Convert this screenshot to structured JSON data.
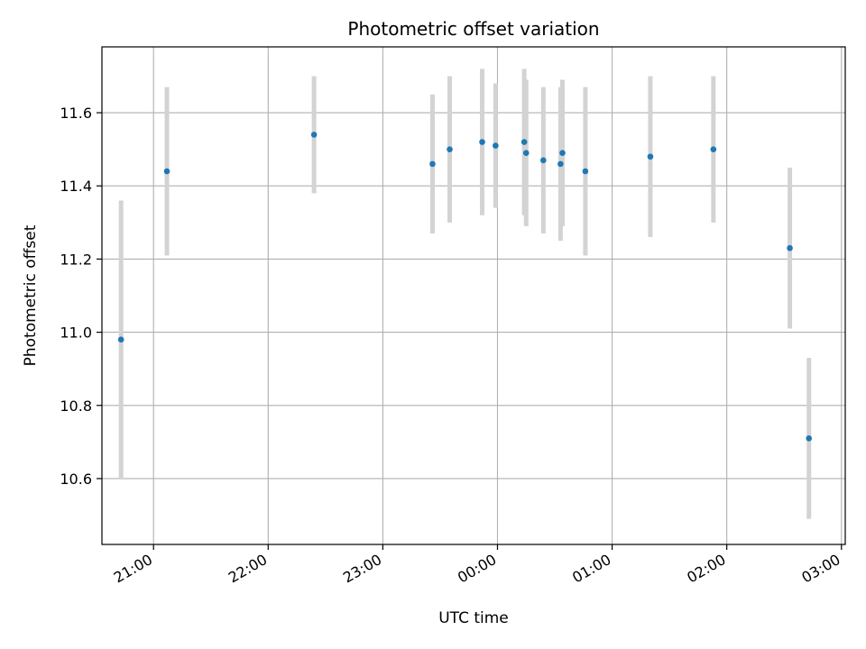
{
  "chart_data": {
    "type": "scatter",
    "title": "Photometric offset variation",
    "xlabel": "UTC time",
    "ylabel": "Photometric offset",
    "x_axis_kind": "time",
    "xlim": [
      "20:33",
      "03:02"
    ],
    "ylim": [
      10.42,
      11.78
    ],
    "xticks": [
      {
        "time": "21:00",
        "label": "21:00"
      },
      {
        "time": "22:00",
        "label": "22:00"
      },
      {
        "time": "23:00",
        "label": "23:00"
      },
      {
        "time": "00:00",
        "label": "00:00"
      },
      {
        "time": "01:00",
        "label": "01:00"
      },
      {
        "time": "02:00",
        "label": "02:00"
      },
      {
        "time": "03:00",
        "label": "03:00"
      }
    ],
    "yticks": [
      10.6,
      10.8,
      11.0,
      11.2,
      11.4,
      11.6
    ],
    "ytick_labels": [
      "10.6",
      "10.8",
      "11.0",
      "11.2",
      "11.4",
      "11.6"
    ],
    "grid": true,
    "colors": {
      "point": "#1f77b4",
      "errorbar": "#d3d3d3",
      "grid": "#b0b0b0",
      "axes": "#000000"
    },
    "series": [
      {
        "points": [
          {
            "time": "20:43",
            "y": 10.98,
            "err": 0.38
          },
          {
            "time": "21:07",
            "y": 11.44,
            "err": 0.23
          },
          {
            "time": "22:24",
            "y": 11.54,
            "err": 0.16
          },
          {
            "time": "23:26",
            "y": 11.46,
            "err": 0.19
          },
          {
            "time": "23:35",
            "y": 11.5,
            "err": 0.2
          },
          {
            "time": "23:52",
            "y": 11.52,
            "err": 0.2
          },
          {
            "time": "23:59",
            "y": 11.51,
            "err": 0.17
          },
          {
            "time": "00:14",
            "y": 11.52,
            "err": 0.2
          },
          {
            "time": "00:15",
            "y": 11.49,
            "err": 0.2
          },
          {
            "time": "00:24",
            "y": 11.47,
            "err": 0.2
          },
          {
            "time": "00:33",
            "y": 11.46,
            "err": 0.21
          },
          {
            "time": "00:34",
            "y": 11.49,
            "err": 0.2
          },
          {
            "time": "00:46",
            "y": 11.44,
            "err": 0.23
          },
          {
            "time": "01:20",
            "y": 11.48,
            "err": 0.22
          },
          {
            "time": "01:53",
            "y": 11.5,
            "err": 0.2
          },
          {
            "time": "02:33",
            "y": 11.23,
            "err": 0.22
          },
          {
            "time": "02:43",
            "y": 10.71,
            "err": 0.22
          }
        ]
      }
    ]
  }
}
